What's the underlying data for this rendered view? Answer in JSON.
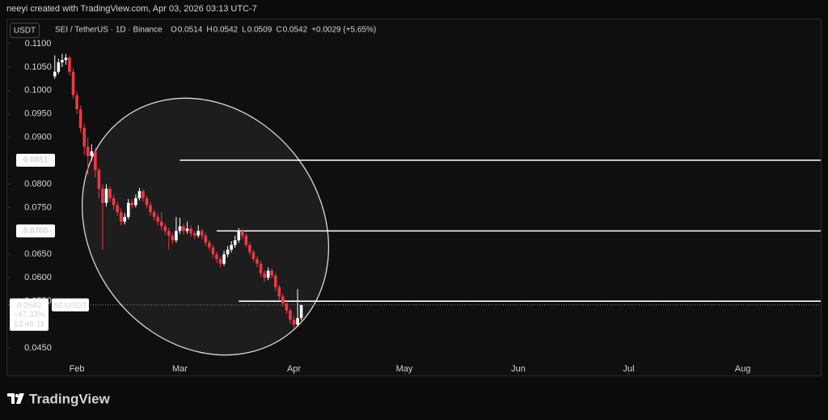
{
  "header": {
    "credit": "neeyi created with TradingView.com, Apr 03, 2026 03:13 UTC-7",
    "currency": "USDT",
    "symbol": "SEI / TetherUS · 1D · Binance",
    "ohlc": [
      {
        "label": "O",
        "value": "0.0514"
      },
      {
        "label": "H",
        "value": "0.0542"
      },
      {
        "label": "L",
        "value": "0.0509"
      },
      {
        "label": "C",
        "value": "0.0542"
      }
    ],
    "change": "+0.0029 (+5.65%)"
  },
  "chart_data": {
    "type": "candlestick",
    "x": [
      26,
      27,
      28,
      29,
      30,
      31,
      32,
      33,
      34,
      35,
      36,
      37,
      38,
      39,
      40,
      41,
      42,
      43,
      44,
      45,
      46,
      47,
      48,
      49,
      50,
      51,
      52,
      53,
      54,
      55,
      56,
      57,
      58,
      59,
      60,
      61,
      62,
      63,
      64,
      65,
      66,
      67,
      68,
      69,
      70,
      71,
      72,
      73,
      74,
      75,
      76,
      77,
      78,
      79,
      80,
      81,
      82,
      83,
      84,
      85,
      86,
      87,
      88,
      89,
      90,
      91,
      92,
      93
    ],
    "open": [
      0.103,
      0.104,
      0.106,
      0.1065,
      0.107,
      0.104,
      0.099,
      0.096,
      0.092,
      0.088,
      0.086,
      0.087,
      0.083,
      0.079,
      0.076,
      0.079,
      0.077,
      0.0755,
      0.074,
      0.072,
      0.073,
      0.076,
      0.0755,
      0.077,
      0.0785,
      0.077,
      0.0755,
      0.074,
      0.073,
      0.072,
      0.071,
      0.07,
      0.069,
      0.068,
      0.07,
      0.071,
      0.07,
      0.0705,
      0.0695,
      0.069,
      0.07,
      0.069,
      0.0675,
      0.0665,
      0.065,
      0.064,
      0.063,
      0.065,
      0.066,
      0.067,
      0.068,
      0.07,
      0.069,
      0.067,
      0.0655,
      0.064,
      0.063,
      0.061,
      0.06,
      0.0615,
      0.0605,
      0.058,
      0.056,
      0.0545,
      0.053,
      0.051,
      0.05,
      0.0514
    ],
    "high": [
      0.1075,
      0.1068,
      0.1078,
      0.1078,
      0.1074,
      0.1048,
      0.0998,
      0.0968,
      0.093,
      0.09,
      0.0885,
      0.0878,
      0.0835,
      0.08,
      0.08,
      0.0795,
      0.0778,
      0.0762,
      0.0748,
      0.0738,
      0.0768,
      0.0768,
      0.0778,
      0.0792,
      0.079,
      0.0776,
      0.0762,
      0.0746,
      0.0736,
      0.074,
      0.0716,
      0.0706,
      0.0696,
      0.073,
      0.0728,
      0.0716,
      0.072,
      0.0712,
      0.07,
      0.0712,
      0.0705,
      0.0696,
      0.068,
      0.067,
      0.0656,
      0.0645,
      0.0658,
      0.0668,
      0.0678,
      0.069,
      0.0706,
      0.0705,
      0.0695,
      0.0676,
      0.066,
      0.0646,
      0.0636,
      0.0616,
      0.0622,
      0.062,
      0.061,
      0.0585,
      0.0566,
      0.055,
      0.0535,
      0.052,
      0.0576,
      0.0542
    ],
    "low": [
      0.1025,
      0.1035,
      0.105,
      0.1055,
      0.1032,
      0.0982,
      0.095,
      0.091,
      0.0862,
      0.082,
      0.085,
      0.0815,
      0.077,
      0.066,
      0.0752,
      0.0762,
      0.0745,
      0.0732,
      0.0712,
      0.0714,
      0.0725,
      0.0748,
      0.075,
      0.0765,
      0.0762,
      0.0748,
      0.0732,
      0.0722,
      0.0712,
      0.0702,
      0.0692,
      0.066,
      0.0672,
      0.0675,
      0.0694,
      0.0692,
      0.0694,
      0.0688,
      0.0682,
      0.0685,
      0.0682,
      0.0668,
      0.0658,
      0.0642,
      0.0632,
      0.0622,
      0.0625,
      0.0644,
      0.0654,
      0.0664,
      0.0675,
      0.0682,
      0.0664,
      0.0648,
      0.0634,
      0.0622,
      0.0602,
      0.0592,
      0.0595,
      0.0598,
      0.0572,
      0.0552,
      0.0538,
      0.0522,
      0.0502,
      0.0492,
      0.0495,
      0.0509
    ],
    "close": [
      0.104,
      0.106,
      0.1065,
      0.107,
      0.104,
      0.099,
      0.096,
      0.092,
      0.088,
      0.086,
      0.087,
      0.083,
      0.079,
      0.076,
      0.079,
      0.077,
      0.0755,
      0.074,
      0.072,
      0.073,
      0.076,
      0.0755,
      0.077,
      0.0785,
      0.077,
      0.0755,
      0.074,
      0.073,
      0.072,
      0.071,
      0.07,
      0.069,
      0.068,
      0.07,
      0.071,
      0.07,
      0.0705,
      0.0695,
      0.069,
      0.07,
      0.069,
      0.0675,
      0.0665,
      0.065,
      0.064,
      0.063,
      0.065,
      0.066,
      0.067,
      0.068,
      0.07,
      0.069,
      0.067,
      0.0655,
      0.064,
      0.063,
      0.061,
      0.06,
      0.0615,
      0.0605,
      0.058,
      0.056,
      0.0545,
      0.053,
      0.051,
      0.05,
      0.0514,
      0.0542
    ],
    "up_color": "#ffffff",
    "down_color": "#f23645",
    "xlim": [
      13.3,
      234.2
    ],
    "ylim": [
      0.0393,
      0.115
    ],
    "xticks": [
      {
        "value": 32,
        "label": "Feb"
      },
      {
        "value": 60,
        "label": "Mar"
      },
      {
        "value": 91,
        "label": "Apr"
      },
      {
        "value": 121,
        "label": "May"
      },
      {
        "value": 152,
        "label": "Jun"
      },
      {
        "value": 182,
        "label": "Jul"
      },
      {
        "value": 213,
        "label": "Aug"
      }
    ],
    "yticks": [
      {
        "value": 0.11,
        "label": "0.1100"
      },
      {
        "value": 0.105,
        "label": "0.1050"
      },
      {
        "value": 0.1,
        "label": "0.1000"
      },
      {
        "value": 0.095,
        "label": "0.0950"
      },
      {
        "value": 0.09,
        "label": "0.0900"
      },
      {
        "value": 0.08,
        "label": "0.0800"
      },
      {
        "value": 0.075,
        "label": "0.0750"
      },
      {
        "value": 0.065,
        "label": "0.0650"
      },
      {
        "value": 0.06,
        "label": "0.0600"
      },
      {
        "value": 0.055,
        "label": "0.0550"
      },
      {
        "value": 0.045,
        "label": "0.0450"
      }
    ],
    "horizontal_lines": [
      {
        "value": 0.0851,
        "label": "0.0851",
        "x_start": 60
      },
      {
        "value": 0.07,
        "label": "0.0700",
        "x_start": 70
      },
      {
        "value": 0.055,
        "x_start": 76
      }
    ],
    "last_price": {
      "value": 0.0542,
      "label": "0.0542",
      "change": "−47.33%",
      "countdown": "13:46:11",
      "symbol": "SEIUSDT"
    }
  },
  "footer": {
    "brand": "TradingView"
  }
}
